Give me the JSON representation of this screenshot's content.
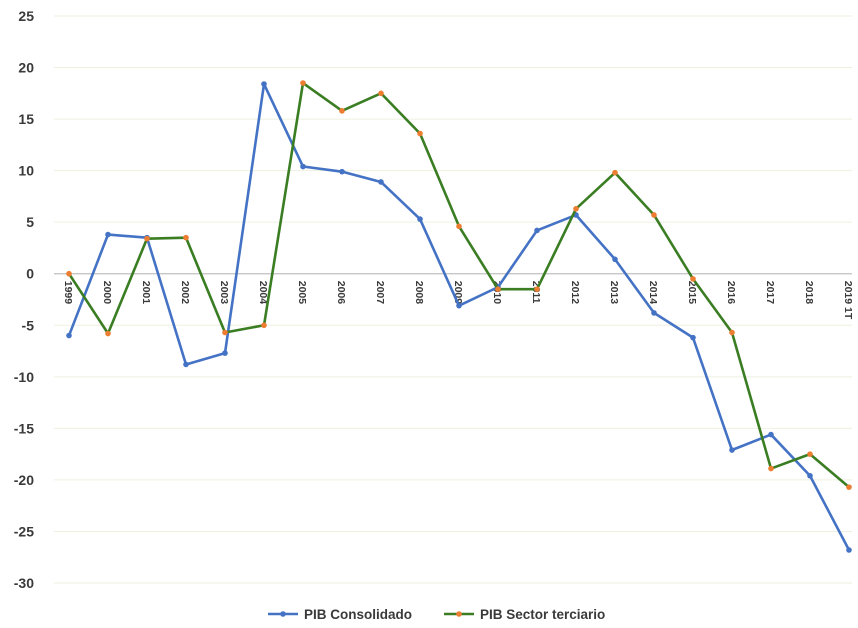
{
  "chart_data": {
    "type": "line",
    "title": "",
    "xlabel": "",
    "ylabel": "",
    "categories": [
      "1999",
      "2000",
      "2001",
      "2002",
      "2003",
      "2004",
      "2005",
      "2006",
      "2007",
      "2008",
      "2009",
      "2010",
      "2011",
      "2012",
      "2013",
      "2014",
      "2015",
      "2016",
      "2017",
      "2018",
      "2019 1T"
    ],
    "ylim": [
      -30,
      25
    ],
    "yticks": [
      25,
      20,
      15,
      10,
      5,
      0,
      -5,
      -10,
      -15,
      -20,
      -25,
      -30
    ],
    "grid": true,
    "legend_position": "bottom",
    "series": [
      {
        "name": "PIB Consolidado",
        "color": "#4472c4",
        "marker_color": "#4472c4",
        "values": [
          -6.0,
          3.8,
          3.5,
          -8.8,
          -7.7,
          18.4,
          10.4,
          9.9,
          8.9,
          5.3,
          -3.1,
          -1.3,
          4.2,
          5.7,
          1.4,
          -3.8,
          -6.2,
          -17.1,
          -15.6,
          -19.6,
          -26.8
        ]
      },
      {
        "name": "PIB Sector terciario",
        "color": "#3a7d22",
        "marker_color": "#ed7d31",
        "values": [
          0.0,
          -5.8,
          3.4,
          3.5,
          -5.7,
          -5.0,
          18.5,
          15.8,
          17.5,
          13.6,
          4.6,
          -1.5,
          -1.5,
          6.3,
          9.8,
          5.7,
          -0.5,
          -5.7,
          -18.9,
          -17.5,
          -20.7
        ]
      }
    ]
  }
}
